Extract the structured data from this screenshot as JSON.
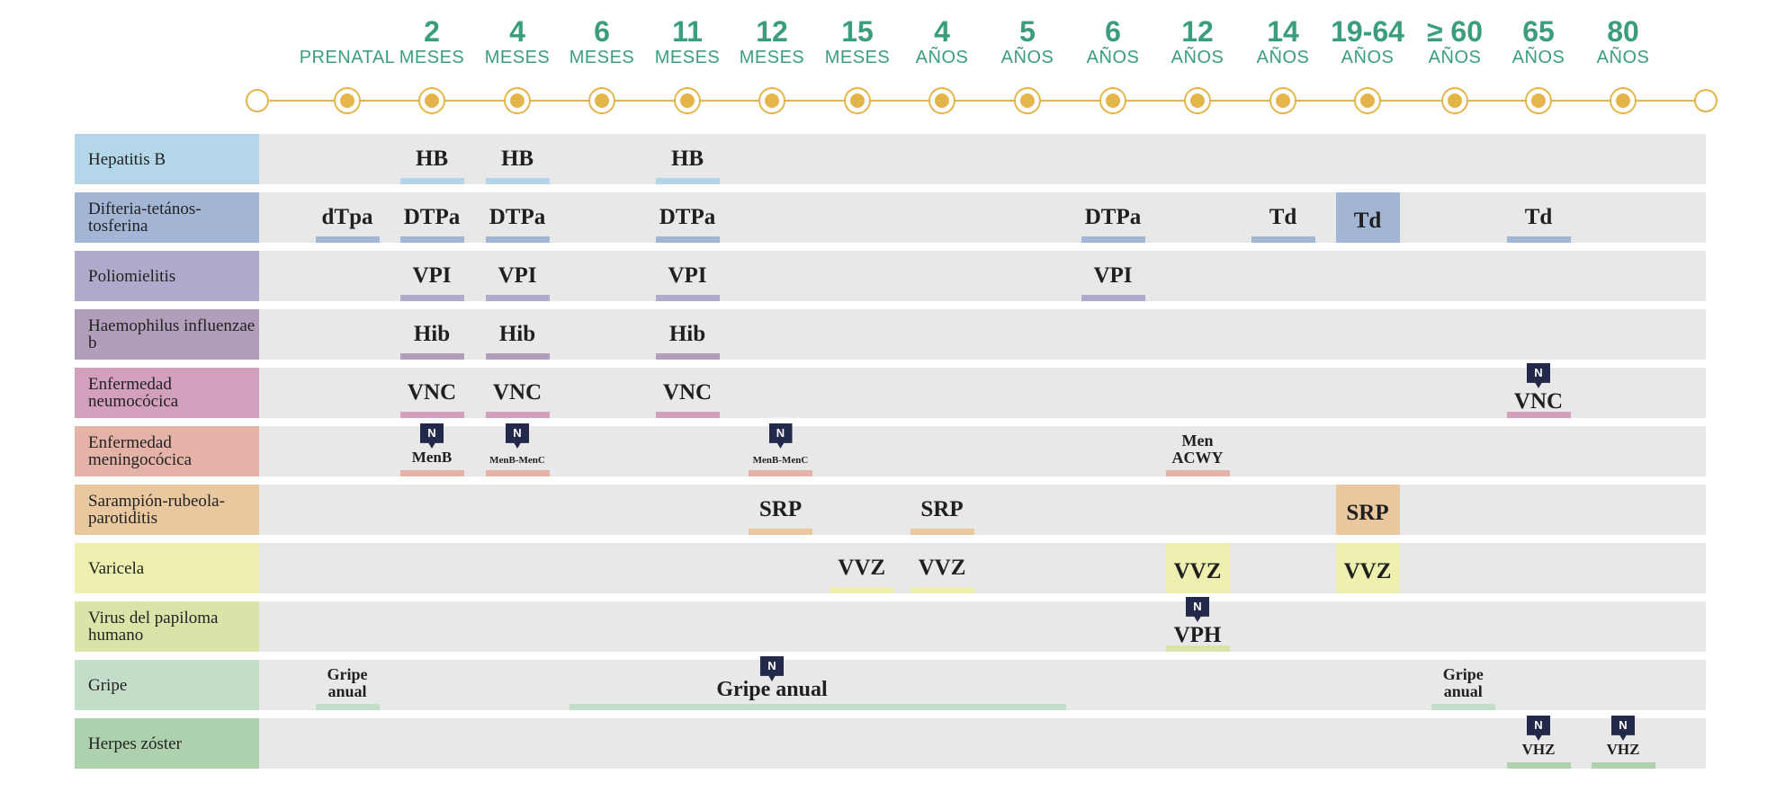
{
  "age_columns": [
    {
      "num": "",
      "unit": "PRENATAL"
    },
    {
      "num": "2",
      "unit": "MESES"
    },
    {
      "num": "4",
      "unit": "MESES"
    },
    {
      "num": "6",
      "unit": "MESES"
    },
    {
      "num": "11",
      "unit": "MESES"
    },
    {
      "num": "12",
      "unit": "MESES"
    },
    {
      "num": "15",
      "unit": "MESES"
    },
    {
      "num": "4",
      "unit": "AÑOS"
    },
    {
      "num": "5",
      "unit": "AÑOS"
    },
    {
      "num": "6",
      "unit": "AÑOS"
    },
    {
      "num": "12",
      "unit": "AÑOS"
    },
    {
      "num": "14",
      "unit": "AÑOS"
    },
    {
      "num": "19-64",
      "unit": "AÑOS"
    },
    {
      "num": "≥ 60",
      "unit": "AÑOS"
    },
    {
      "num": "65",
      "unit": "AÑOS"
    },
    {
      "num": "80",
      "unit": "AÑOS"
    }
  ],
  "badge_text": "N",
  "rows": [
    {
      "label": "Hepatitis B",
      "color": "#b3d6e9",
      "vaccines": [
        {
          "text": "HB",
          "col": 1
        },
        {
          "text": "HB",
          "col": 2
        },
        {
          "text": "HB",
          "col": 4
        }
      ]
    },
    {
      "label": "Difteria-tetános-tosferina",
      "color": "#a2b5d5",
      "vaccines": [
        {
          "text": "dTpa",
          "col": 0
        },
        {
          "text": "DTPa",
          "col": 1
        },
        {
          "text": "DTPa",
          "col": 2
        },
        {
          "text": "DTPa",
          "col": 4
        },
        {
          "text": "DTPa",
          "col": 9
        },
        {
          "text": "Td",
          "col": 11
        },
        {
          "text": "Td",
          "col": 12,
          "highlight": true
        },
        {
          "text": "Td",
          "col": 14
        }
      ]
    },
    {
      "label": "Poliomielitis",
      "color": "#aeaacb",
      "vaccines": [
        {
          "text": "VPI",
          "col": 1
        },
        {
          "text": "VPI",
          "col": 2
        },
        {
          "text": "VPI",
          "col": 4
        },
        {
          "text": "VPI",
          "col": 9
        }
      ]
    },
    {
      "label": "Haemophilus influenzae b",
      "color": "#b19eba",
      "vaccines": [
        {
          "text": "Hib",
          "col": 1
        },
        {
          "text": "Hib",
          "col": 2
        },
        {
          "text": "Hib",
          "col": 4
        }
      ]
    },
    {
      "label": "Enfermedad neumocócica",
      "color": "#d29fbc",
      "vaccines": [
        {
          "text": "VNC",
          "col": 1
        },
        {
          "text": "VNC",
          "col": 2
        },
        {
          "text": "VNC",
          "col": 4
        },
        {
          "text": "VNC",
          "col": 14,
          "new": true
        }
      ]
    },
    {
      "label": "Enfermedad meningocócica",
      "color": "#e4b2a7",
      "vaccines": [
        {
          "text": "MenB",
          "col": 1,
          "new": true,
          "size": "small"
        },
        {
          "text": "MenB-MenC",
          "col": 2,
          "new": true,
          "size": "tiny"
        },
        {
          "text": "MenB-MenC",
          "col": 5.1,
          "new": true,
          "size": "tiny"
        },
        {
          "text": "Men ACWY",
          "col": 10,
          "size": "small2"
        }
      ]
    },
    {
      "label": "Sarampión-rubeola-parotiditis",
      "color": "#e9c8a0",
      "vaccines": [
        {
          "text": "SRP",
          "col": 5.1
        },
        {
          "text": "SRP",
          "col": 7
        },
        {
          "text": "SRP",
          "col": 12,
          "highlight": true
        }
      ]
    },
    {
      "label": "Varicela",
      "color": "#eef0b0",
      "vaccines": [
        {
          "text": "VVZ",
          "col": 6.05
        },
        {
          "text": "VVZ",
          "col": 7
        },
        {
          "text": "VVZ",
          "col": 10,
          "highlight": true
        },
        {
          "text": "VVZ",
          "col": 12,
          "highlight": true
        }
      ]
    },
    {
      "label": "Virus del papiloma humano",
      "color": "#dbe4a8",
      "vaccines": [
        {
          "text": "VPH",
          "col": 10,
          "new": true
        }
      ]
    },
    {
      "label": "Gripe",
      "color": "#c3dec8",
      "vaccines": [
        {
          "text": "Gripe anual",
          "col": 0,
          "size": "small2"
        },
        {
          "text": "Gripe anual",
          "col": 5,
          "span_to": 8.45,
          "new": true,
          "size": "medium"
        },
        {
          "text": "Gripe anual",
          "col": 13.1,
          "size": "small2"
        }
      ]
    },
    {
      "label": "Herpes zóster",
      "color": "#acd1ac",
      "vaccines": [
        {
          "text": "VHZ",
          "col": 14,
          "new": true,
          "size": "small"
        },
        {
          "text": "VHZ",
          "col": 15,
          "new": true,
          "size": "small"
        }
      ]
    }
  ]
}
